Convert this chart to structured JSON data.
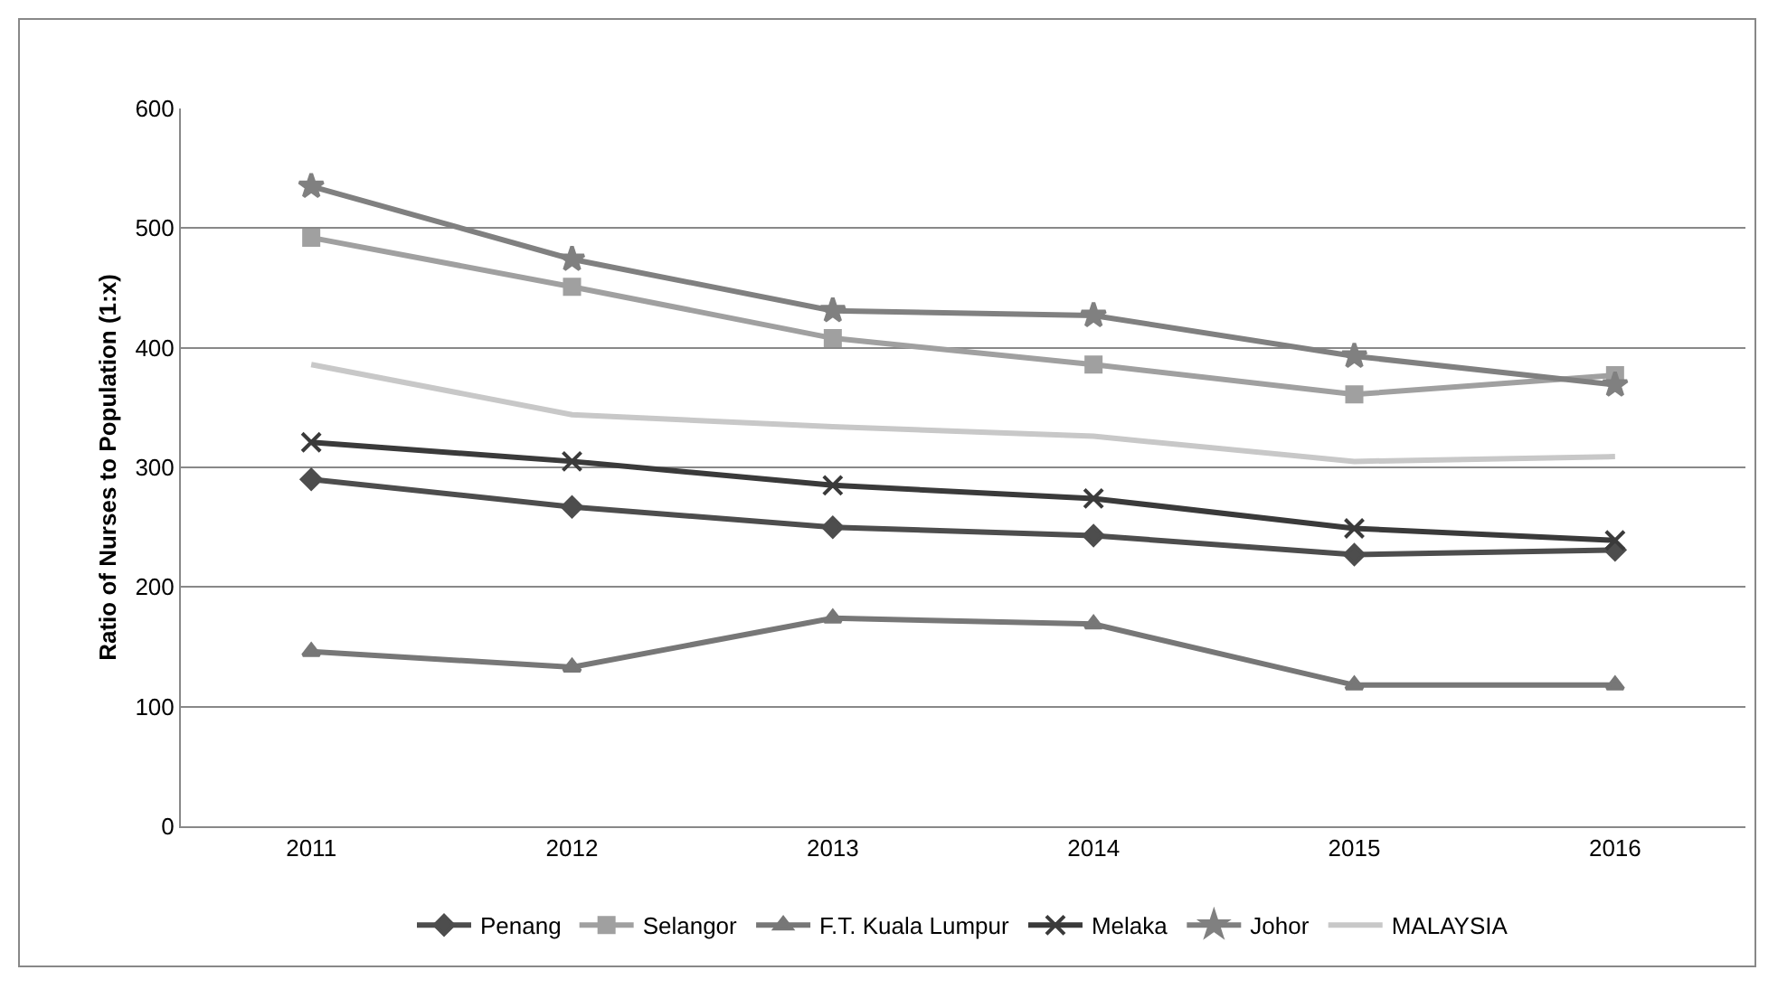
{
  "chart_data": {
    "type": "line",
    "ylabel": "Ratio of Nurses to Population (1:x)",
    "categories": [
      "2011",
      "2012",
      "2013",
      "2014",
      "2015",
      "2016"
    ],
    "ylim": [
      0,
      600
    ],
    "yticks": [
      0,
      100,
      200,
      300,
      400,
      500,
      600
    ],
    "grid": "y",
    "legend": "bottom",
    "series": [
      {
        "name": "Penang",
        "color": "#4d4d4d",
        "marker": "diamond",
        "values": [
          290,
          267,
          250,
          243,
          227,
          231
        ]
      },
      {
        "name": "Selangor",
        "color": "#a0a0a0",
        "marker": "square",
        "values": [
          492,
          451,
          408,
          386,
          361,
          377
        ]
      },
      {
        "name": "F.T. Kuala Lumpur",
        "color": "#777777",
        "marker": "triangle",
        "values": [
          146,
          133,
          174,
          169,
          118,
          118
        ]
      },
      {
        "name": "Melaka",
        "color": "#3a3a3a",
        "marker": "cross",
        "values": [
          321,
          305,
          285,
          274,
          249,
          239
        ]
      },
      {
        "name": "Johor",
        "color": "#808080",
        "marker": "star",
        "values": [
          535,
          474,
          431,
          427,
          393,
          369
        ]
      },
      {
        "name": "MALAYSIA",
        "color": "#c8c8c8",
        "marker": "none",
        "values": [
          386,
          344,
          334,
          326,
          305,
          309
        ]
      }
    ]
  }
}
